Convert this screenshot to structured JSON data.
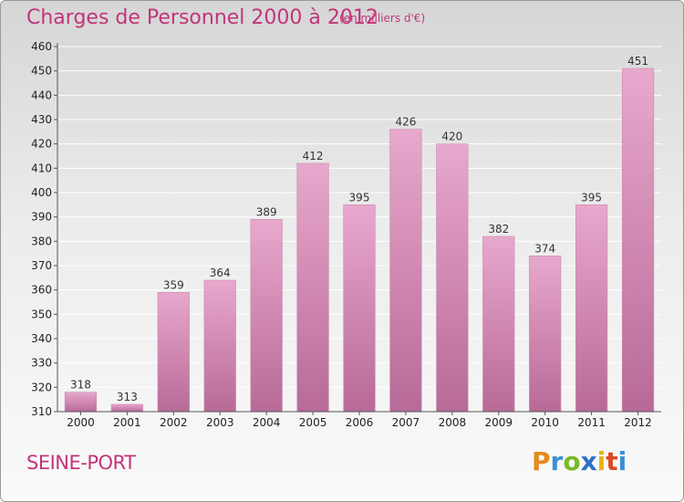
{
  "header": {
    "title": "Charges de Personnel 2000 à 2012",
    "subtitle": "(en milliers d'€)"
  },
  "footer": {
    "location": "SEINE-PORT",
    "brand_letters": [
      "P",
      "r",
      "o",
      "x",
      "i",
      "t",
      "i"
    ]
  },
  "colors": {
    "title": "#c2357a",
    "bar_light": "#e8a8cd",
    "bar_dark": "#b86a97",
    "grid": "#ffffff"
  },
  "chart_data": {
    "type": "bar",
    "categories": [
      "2000",
      "2001",
      "2002",
      "2003",
      "2004",
      "2005",
      "2006",
      "2007",
      "2008",
      "2009",
      "2010",
      "2011",
      "2012"
    ],
    "values": [
      318,
      313,
      359,
      364,
      389,
      412,
      395,
      426,
      420,
      382,
      374,
      395,
      451
    ],
    "data_labels": [
      "318",
      "313",
      "359",
      "364",
      "389",
      "412",
      "395",
      "426",
      "420",
      "382",
      "374",
      "395",
      "451"
    ],
    "ylim": [
      310,
      460
    ],
    "yticks": [
      "310",
      "320",
      "330",
      "340",
      "350",
      "360",
      "370",
      "380",
      "390",
      "400",
      "410",
      "420",
      "430",
      "440",
      "450",
      "460"
    ],
    "grid": true,
    "legend": "none"
  }
}
